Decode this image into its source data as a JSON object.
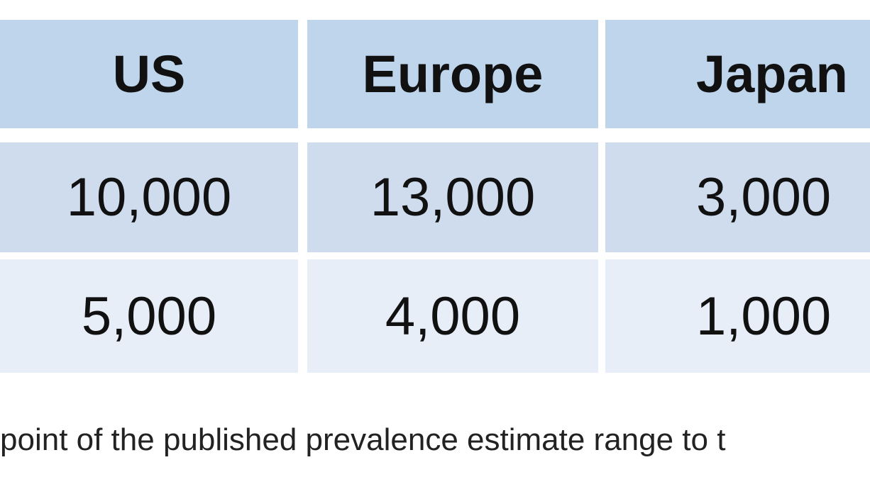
{
  "table": {
    "header": [
      "US",
      "Europe",
      "Japan"
    ],
    "rows": [
      [
        "10,000",
        "13,000",
        "3,000"
      ],
      [
        "5,000",
        "4,000",
        "1,000"
      ]
    ]
  },
  "footnote": "point of the published prevalence estimate range to t"
}
